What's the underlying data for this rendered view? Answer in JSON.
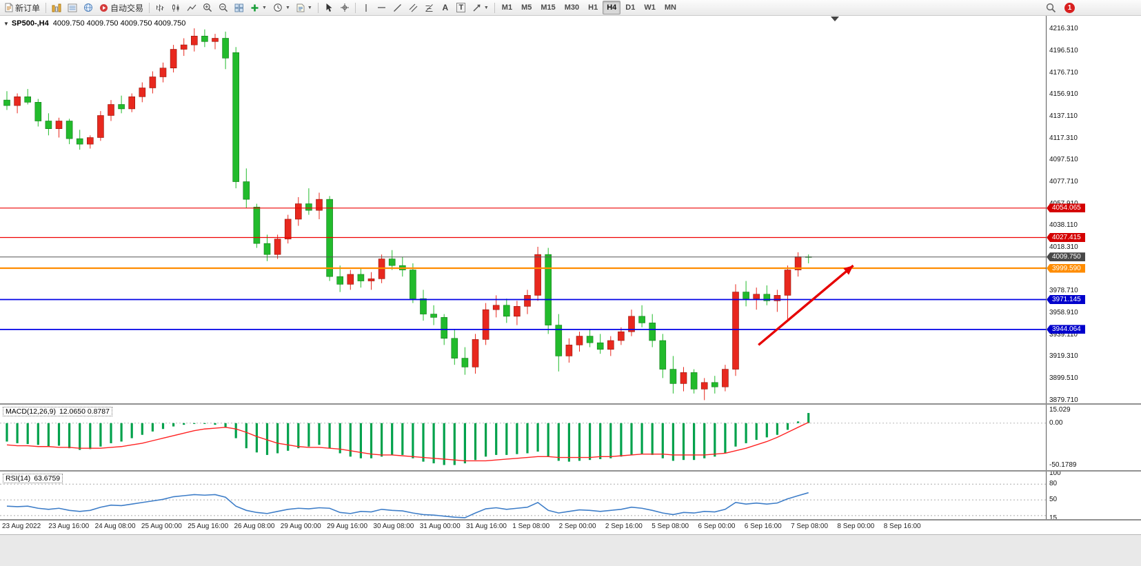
{
  "toolbar": {
    "new_order_label": "新订单",
    "autotrading_label": "自动交易",
    "caret_glyph": "▼",
    "text_tool_glyph": "A",
    "label_tool_glyph": "T",
    "timeframes": [
      {
        "label": "M1",
        "active": false
      },
      {
        "label": "M5",
        "active": false
      },
      {
        "label": "M15",
        "active": false
      },
      {
        "label": "M30",
        "active": false
      },
      {
        "label": "H1",
        "active": false
      },
      {
        "label": "H4",
        "active": true
      },
      {
        "label": "D1",
        "active": false
      },
      {
        "label": "W1",
        "active": false
      },
      {
        "label": "MN",
        "active": false
      }
    ],
    "notification_count": "1"
  },
  "chart": {
    "collapse_glyph": "▼",
    "symbol_period": "SP500-,H4",
    "ohlc_text": "4009.750 4009.750 4009.750 4009.750"
  },
  "chart_data": {
    "type": "candlestick",
    "symbol": "SP500-",
    "timeframe": "H4",
    "ylim": [
      3876.5,
      4228.3
    ],
    "up_color": "#e8281e",
    "up_edge": "#8f1309",
    "down_color": "#22bb2c",
    "down_edge": "#0f7a17",
    "y_ticks": [
      "4216.310",
      "4196.510",
      "4176.710",
      "4156.910",
      "4137.110",
      "4117.310",
      "4097.510",
      "4077.710",
      "4057.910",
      "4038.110",
      "4018.310",
      "3998.510",
      "3978.710",
      "3958.910",
      "3939.110",
      "3919.310",
      "3899.510",
      "3879.710"
    ],
    "x_labels": [
      "23 Aug 2022",
      "23 Aug 16:00",
      "24 Aug 08:00",
      "25 Aug 00:00",
      "25 Aug 16:00",
      "26 Aug 08:00",
      "29 Aug 00:00",
      "29 Aug 16:00",
      "30 Aug 08:00",
      "31 Aug 00:00",
      "31 Aug 16:00",
      "1 Sep 08:00",
      "2 Sep 00:00",
      "2 Sep 16:00",
      "5 Sep 08:00",
      "6 Sep 00:00",
      "6 Sep 16:00",
      "7 Sep 08:00",
      "8 Sep 00:00",
      "8 Sep 16:00"
    ],
    "candles": [
      [
        4152,
        4160,
        4143,
        4147
      ],
      [
        4147,
        4158,
        4140,
        4155
      ],
      [
        4155,
        4162,
        4148,
        4150
      ],
      [
        4150,
        4153,
        4128,
        4133
      ],
      [
        4133,
        4140,
        4120,
        4126
      ],
      [
        4126,
        4136,
        4118,
        4133
      ],
      [
        4133,
        4135,
        4112,
        4117
      ],
      [
        4117,
        4125,
        4107,
        4112
      ],
      [
        4112,
        4120,
        4108,
        4118
      ],
      [
        4118,
        4142,
        4115,
        4138
      ],
      [
        4138,
        4152,
        4133,
        4148
      ],
      [
        4148,
        4156,
        4140,
        4144
      ],
      [
        4144,
        4158,
        4141,
        4155
      ],
      [
        4155,
        4168,
        4150,
        4163
      ],
      [
        4163,
        4178,
        4158,
        4173
      ],
      [
        4173,
        4186,
        4168,
        4181
      ],
      [
        4181,
        4202,
        4177,
        4198
      ],
      [
        4198,
        4208,
        4192,
        4202
      ],
      [
        4202,
        4217,
        4196,
        4210
      ],
      [
        4210,
        4216,
        4200,
        4205
      ],
      [
        4205,
        4212,
        4198,
        4208
      ],
      [
        4208,
        4214,
        4180,
        4190
      ],
      [
        4195,
        4200,
        4072,
        4078
      ],
      [
        4078,
        4090,
        4054,
        4062
      ],
      [
        4055,
        4058,
        4018,
        4022
      ],
      [
        4022,
        4030,
        4006,
        4012
      ],
      [
        4012,
        4030,
        4008,
        4026
      ],
      [
        4026,
        4048,
        4022,
        4044
      ],
      [
        4044,
        4064,
        4038,
        4058
      ],
      [
        4058,
        4072,
        4048,
        4052
      ],
      [
        4052,
        4068,
        4044,
        4062
      ],
      [
        4062,
        4065,
        3988,
        3992
      ],
      [
        3992,
        4002,
        3978,
        3985
      ],
      [
        3985,
        3998,
        3980,
        3994
      ],
      [
        3994,
        4000,
        3982,
        3988
      ],
      [
        3988,
        3996,
        3980,
        3990
      ],
      [
        3990,
        4012,
        3986,
        4008
      ],
      [
        4008,
        4016,
        3998,
        4002
      ],
      [
        4002,
        4010,
        3992,
        3998
      ],
      [
        3998,
        4004,
        3968,
        3972
      ],
      [
        3972,
        3980,
        3952,
        3958
      ],
      [
        3958,
        3966,
        3948,
        3955
      ],
      [
        3955,
        3958,
        3930,
        3936
      ],
      [
        3936,
        3944,
        3912,
        3918
      ],
      [
        3918,
        3928,
        3903,
        3910
      ],
      [
        3910,
        3940,
        3904,
        3935
      ],
      [
        3935,
        3968,
        3930,
        3962
      ],
      [
        3962,
        3975,
        3955,
        3966
      ],
      [
        3966,
        3972,
        3950,
        3956
      ],
      [
        3956,
        3970,
        3948,
        3965
      ],
      [
        3965,
        3980,
        3958,
        3975
      ],
      [
        3975,
        4019,
        3970,
        4012
      ],
      [
        4012,
        4018,
        3940,
        3948
      ],
      [
        3948,
        3958,
        3906,
        3920
      ],
      [
        3920,
        3936,
        3914,
        3930
      ],
      [
        3930,
        3942,
        3924,
        3938
      ],
      [
        3938,
        3944,
        3928,
        3932
      ],
      [
        3932,
        3940,
        3922,
        3926
      ],
      [
        3926,
        3938,
        3920,
        3934
      ],
      [
        3934,
        3946,
        3930,
        3942
      ],
      [
        3942,
        3962,
        3938,
        3956
      ],
      [
        3956,
        3966,
        3946,
        3950
      ],
      [
        3950,
        3958,
        3928,
        3934
      ],
      [
        3934,
        3940,
        3900,
        3908
      ],
      [
        3908,
        3920,
        3886,
        3895
      ],
      [
        3895,
        3910,
        3888,
        3905
      ],
      [
        3905,
        3908,
        3886,
        3890
      ],
      [
        3890,
        3900,
        3880,
        3896
      ],
      [
        3896,
        3902,
        3886,
        3892
      ],
      [
        3892,
        3912,
        3888,
        3908
      ],
      [
        3908,
        3985,
        3902,
        3978
      ],
      [
        3978,
        3988,
        3965,
        3972
      ],
      [
        3972,
        3982,
        3962,
        3976
      ],
      [
        3976,
        3984,
        3966,
        3970
      ],
      [
        3970,
        3980,
        3960,
        3975
      ],
      [
        3975,
        4002,
        3952,
        3998
      ],
      [
        3998,
        4014,
        3992,
        4010
      ],
      [
        4010,
        4012,
        4004,
        4009.75
      ]
    ],
    "hlines": [
      {
        "price": 4054.065,
        "label": "4054.065",
        "color": "#ee0000",
        "tag_bg": "#d40000",
        "w": 1.2
      },
      {
        "price": 4027.415,
        "label": "4027.415",
        "color": "#ee0000",
        "tag_bg": "#d40000",
        "w": 1.2
      },
      {
        "price": 4009.75,
        "label": "4009.750",
        "color": "#555555",
        "tag_bg": "#484848",
        "w": 1.1
      },
      {
        "price": 3999.59,
        "label": "3999.590",
        "color": "#ff8c00",
        "tag_bg": "#ff8c00",
        "w": 2.2
      },
      {
        "price": 3971.145,
        "label": "3971.145",
        "color": "#0000e6",
        "tag_bg": "#0000cc",
        "w": 1.8
      },
      {
        "price": 3944.064,
        "label": "3944.064",
        "color": "#0000e6",
        "tag_bg": "#0000cc",
        "w": 1.8
      }
    ],
    "arrow": {
      "from_bar": 72.2,
      "from_price": 3930,
      "to_bar": 81.3,
      "to_price": 4002,
      "color": "#e60000"
    },
    "macd": {
      "label": "MACD(12,26,9)",
      "values_text": "12.0650 0.8787",
      "ylim": [
        -57,
        22
      ],
      "hist_color": "#00a14b",
      "signal_color": "#ff2222",
      "hist": [
        -22,
        -24,
        -25,
        -26,
        -28,
        -27,
        -30,
        -32,
        -31,
        -28,
        -24,
        -22,
        -18,
        -14,
        -10,
        -7,
        -4,
        -2,
        -1,
        -1,
        -2,
        -5,
        -18,
        -30,
        -35,
        -38,
        -36,
        -33,
        -30,
        -28,
        -26,
        -30,
        -36,
        -40,
        -42,
        -42,
        -40,
        -38,
        -38,
        -42,
        -46,
        -48,
        -50,
        -50,
        -48,
        -44,
        -40,
        -38,
        -38,
        -37,
        -36,
        -34,
        -40,
        -45,
        -46,
        -45,
        -44,
        -43,
        -42,
        -40,
        -38,
        -37,
        -38,
        -42,
        -45,
        -44,
        -44,
        -42,
        -40,
        -36,
        -28,
        -24,
        -20,
        -17,
        -14,
        -8,
        2,
        12.07
      ],
      "signal": [
        -26,
        -27,
        -27,
        -28,
        -28,
        -29,
        -29,
        -30,
        -30,
        -30,
        -29,
        -28,
        -26,
        -24,
        -21,
        -18,
        -15,
        -12,
        -9,
        -7,
        -6,
        -5,
        -7,
        -11,
        -16,
        -20,
        -24,
        -26,
        -28,
        -29,
        -29,
        -30,
        -31,
        -33,
        -35,
        -37,
        -38,
        -38,
        -39,
        -40,
        -41,
        -42,
        -43,
        -44,
        -45,
        -45,
        -45,
        -44,
        -43,
        -42,
        -41,
        -40,
        -40,
        -41,
        -41,
        -41,
        -41,
        -40,
        -40,
        -39,
        -38,
        -37,
        -37,
        -37,
        -38,
        -38,
        -38,
        -38,
        -37,
        -36,
        -33,
        -30,
        -26,
        -22,
        -17,
        -11,
        -5,
        0.88
      ],
      "scale_labels": [
        {
          "v": 15.029,
          "t": "15.029"
        },
        {
          "v": 0,
          "t": "0.00"
        },
        {
          "v": -50.1789,
          "t": "-50.1789"
        }
      ]
    },
    "rsi": {
      "label": "RSI(14)",
      "value_text": "63.6759",
      "ylim": [
        12,
        104
      ],
      "color": "#3d7dc8",
      "levels": [
        80,
        50,
        20
      ],
      "values": [
        38,
        37,
        38,
        34,
        32,
        34,
        30,
        28,
        30,
        36,
        40,
        39,
        42,
        45,
        48,
        51,
        56,
        58,
        60,
        59,
        60,
        55,
        38,
        30,
        26,
        24,
        28,
        32,
        34,
        33,
        35,
        34,
        26,
        24,
        28,
        27,
        32,
        30,
        29,
        25,
        22,
        21,
        19,
        17,
        16,
        25,
        33,
        35,
        32,
        34,
        36,
        45,
        30,
        25,
        28,
        31,
        30,
        28,
        30,
        32,
        36,
        34,
        30,
        25,
        22,
        26,
        25,
        28,
        27,
        32,
        45,
        42,
        44,
        42,
        44,
        52,
        58,
        63.68
      ],
      "scale_labels": [
        {
          "v": 100,
          "t": "100"
        },
        {
          "v": 80,
          "t": "80"
        },
        {
          "v": 50,
          "t": "50"
        },
        {
          "v": 15,
          "t": "15"
        }
      ]
    }
  }
}
